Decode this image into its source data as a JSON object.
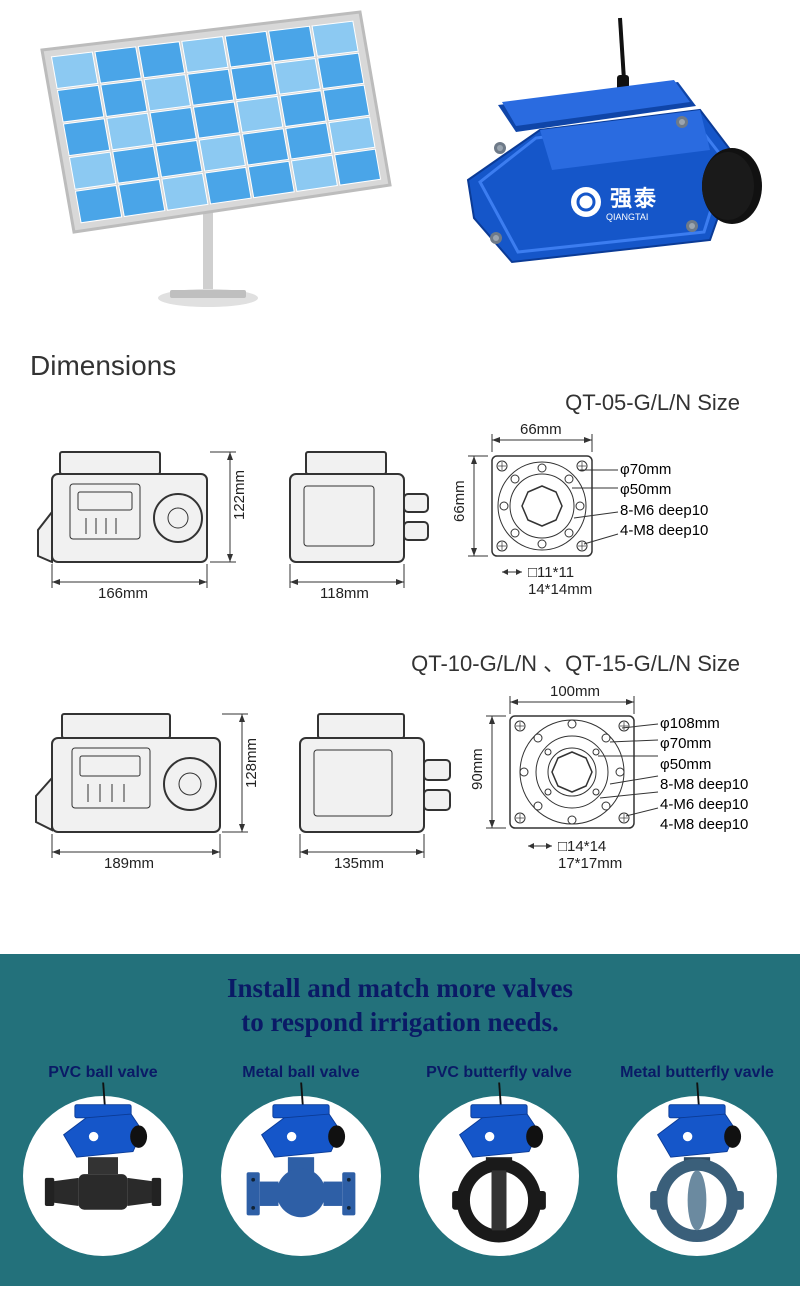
{
  "hero": {
    "solar": {
      "cols": 7,
      "rows": 5,
      "cell_color": "#4aa5e8",
      "cell_highlight": "#8cc9f2",
      "frame_color": "#d8d8d8",
      "pole_color": "#cfcfcf"
    },
    "actuator": {
      "body_color": "#1556c9",
      "body_edge": "#0b3b96",
      "knob_color": "#111111",
      "screw_color": "#6e7a88",
      "brand1": "强",
      "brand2": "泰",
      "brand_sub": "QIANGTAI",
      "antenna_color": "#111111"
    }
  },
  "dimensions": {
    "heading": "Dimensions",
    "row1": {
      "size_title": "QT-05-G/L/N Size",
      "side": {
        "width": "166mm",
        "height": "122mm"
      },
      "back": {
        "width": "118mm"
      },
      "flange": {
        "outer_w": "66mm",
        "outer_h": "66mm",
        "specs": [
          "φ70mm",
          "φ50mm",
          "8-M6 deep10",
          "4-M8 deep10"
        ],
        "drive": "□11*11",
        "drive2": "14*14mm"
      }
    },
    "row2": {
      "size_title": "QT-10-G/L/N 、QT-15-G/L/N Size",
      "side": {
        "width": "189mm",
        "height": "128mm"
      },
      "back": {
        "width": "135mm"
      },
      "flange": {
        "outer_w": "100mm",
        "outer_h": "90mm",
        "specs": [
          "φ108mm",
          "φ70mm",
          "φ50mm",
          "8-M8 deep10",
          "4-M6 deep10",
          "4-M8 deep10"
        ],
        "drive": "□14*14",
        "drive2": "17*17mm"
      }
    }
  },
  "banner": {
    "line1": "Install and match more valves",
    "line2": "to respond irrigation needs.",
    "bg": "#23717b",
    "text_color": "#0a1a66"
  },
  "valves": [
    {
      "label": "PVC ball valve",
      "type": "pvc_ball",
      "body_color": "#2a2a2a",
      "actuator_color": "#1556c9"
    },
    {
      "label": "Metal ball valve",
      "type": "metal_ball",
      "body_color": "#2e5fa6",
      "actuator_color": "#1556c9"
    },
    {
      "label": "PVC butterfly valve",
      "type": "pvc_butterfly",
      "body_color": "#1a1a1a",
      "actuator_color": "#1556c9"
    },
    {
      "label": "Metal butterfly vavle",
      "type": "metal_butterfly",
      "body_color": "#3a5f7a",
      "actuator_color": "#1556c9"
    }
  ]
}
